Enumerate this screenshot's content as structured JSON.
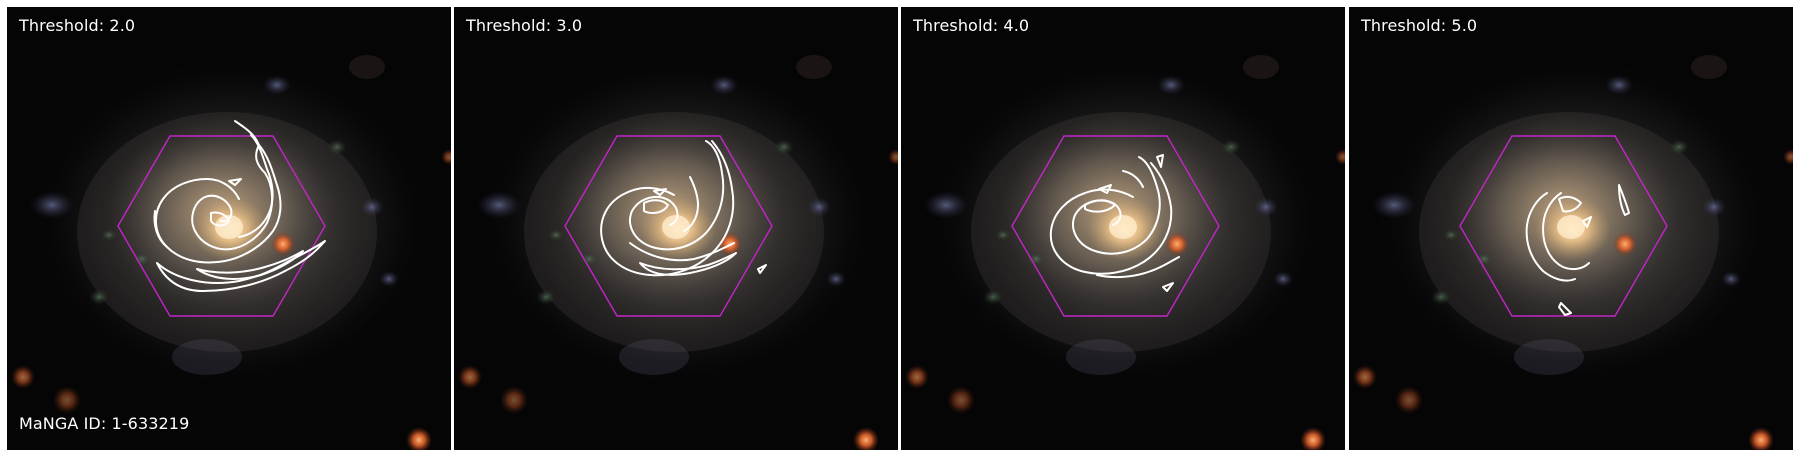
{
  "panels": [
    {
      "threshold_label": "Threshold: 2.0"
    },
    {
      "threshold_label": "Threshold: 3.0"
    },
    {
      "threshold_label": "Threshold: 4.0"
    },
    {
      "threshold_label": "Threshold: 5.0"
    }
  ],
  "manga_id_label": "MaNGA ID: 1-633219",
  "colors": {
    "hexagon": "#c026c8",
    "contour": "#ffffff",
    "background": "#050506",
    "galaxy_core": "#f2c98a",
    "red_star": "#ff6a30"
  }
}
